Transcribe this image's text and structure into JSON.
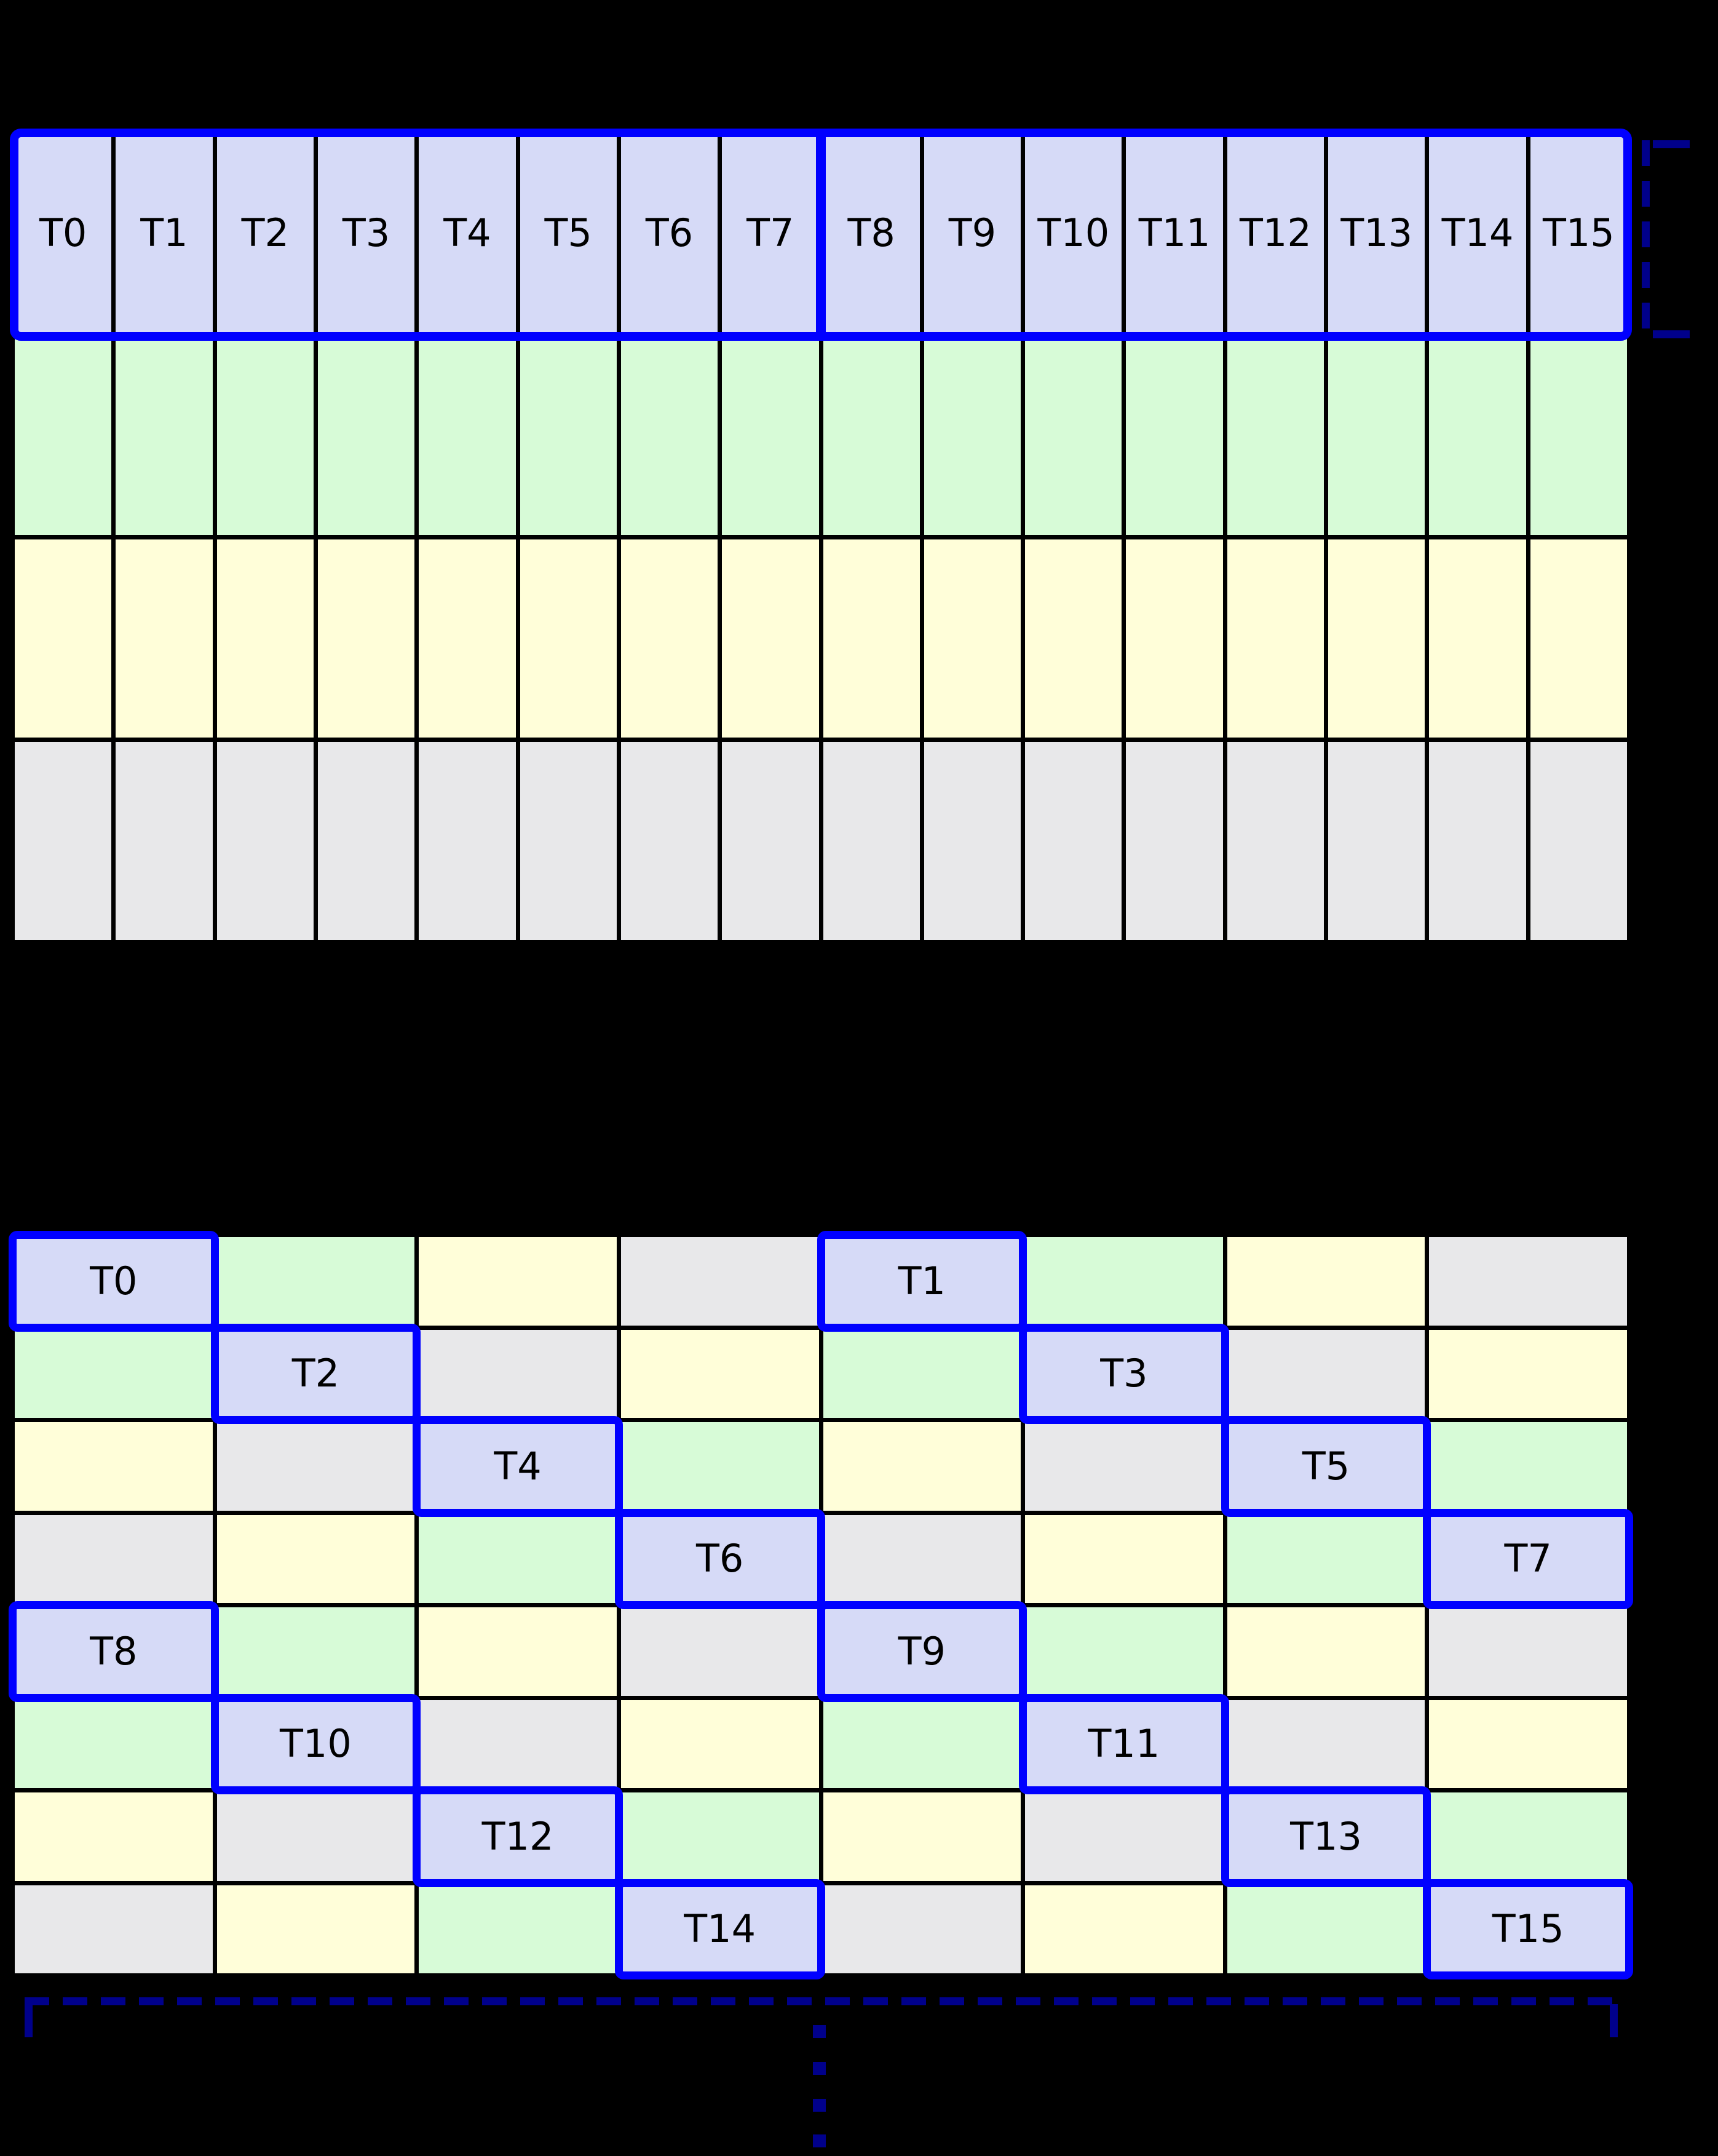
{
  "palette": {
    "background": "#000000",
    "warp_border_blue": "#0000FF",
    "annotation_navy": "#00008B",
    "thread_cell_lavender": "#D6DAF7",
    "green_cell": "#D7FBD7",
    "yellow_cell": "#FFFED9",
    "gray_cell": "#E8E8EA",
    "label_color": "#000000"
  },
  "top_grid": {
    "columns": 16,
    "rows": 4,
    "thread_labels": [
      "T0",
      "T1",
      "T2",
      "T3",
      "T4",
      "T5",
      "T6",
      "T7",
      "T8",
      "T9",
      "T10",
      "T11",
      "T12",
      "T13",
      "T14",
      "T15"
    ],
    "row_fills": [
      "thread",
      "green",
      "yellow",
      "gray"
    ],
    "half_warp_divider_after_column": 8
  },
  "bottom_grid": {
    "columns": 8,
    "rows": 8,
    "cells": [
      [
        "T0",
        "green",
        "yellow",
        "gray",
        "T1",
        "green",
        "yellow",
        "gray"
      ],
      [
        "green",
        "T2",
        "gray",
        "yellow",
        "green",
        "T3",
        "gray",
        "yellow"
      ],
      [
        "yellow",
        "gray",
        "T4",
        "green",
        "yellow",
        "gray",
        "T5",
        "green"
      ],
      [
        "gray",
        "yellow",
        "green",
        "T6",
        "gray",
        "yellow",
        "green",
        "T7"
      ],
      [
        "T8",
        "green",
        "yellow",
        "gray",
        "T9",
        "green",
        "yellow",
        "gray"
      ],
      [
        "green",
        "T10",
        "gray",
        "yellow",
        "green",
        "T11",
        "gray",
        "yellow"
      ],
      [
        "yellow",
        "gray",
        "T12",
        "green",
        "yellow",
        "gray",
        "T13",
        "green"
      ],
      [
        "gray",
        "yellow",
        "green",
        "T14",
        "gray",
        "yellow",
        "green",
        "T15"
      ]
    ]
  },
  "annotations": {
    "right_bracket_icon": "half-warp-extent-bracket",
    "bottom_bracket_icon": "row-extent-bracket",
    "ellipsis_icon": "vertical-ellipsis",
    "ellipsis_dot_count": 4
  }
}
